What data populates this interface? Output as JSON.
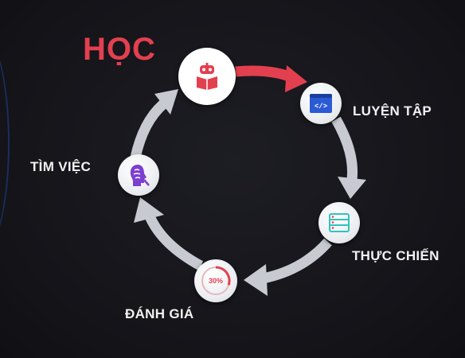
{
  "diagram": {
    "title": "HỌC",
    "steps": [
      {
        "id": "luyen-tap",
        "label": "LUYỆN TẬP",
        "icon": "code-window-icon"
      },
      {
        "id": "thuc-chien",
        "label": "THỰC CHIẾN",
        "icon": "server-rack-icon"
      },
      {
        "id": "danh-gia",
        "label": "ĐÁNH GIÁ",
        "icon": "progress-ring-icon",
        "value": "30%"
      },
      {
        "id": "tim-viec",
        "label": "TÌM VIỆC",
        "icon": "brain-profile-icon"
      }
    ],
    "start_icon": "robot-reading-icon",
    "colors": {
      "background": "#17171c",
      "accent": "#e3404f",
      "arrow": "#c7cbd1",
      "text": "#f2f2f2"
    }
  }
}
